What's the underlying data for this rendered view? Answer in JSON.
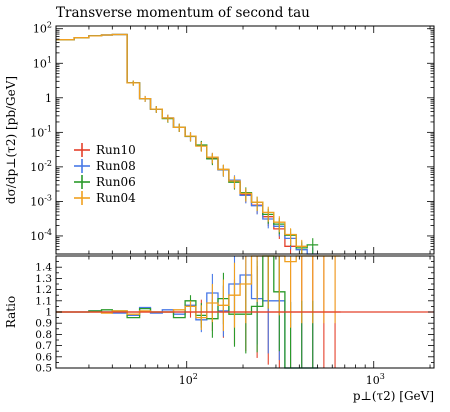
{
  "chart_data": {
    "type": "line",
    "title": "Transverse momentum of second tau",
    "xlabel": "p⊥(τ2) [GeV]",
    "ylabel": "dσ/dp⊥(τ2) [pb/GeV]",
    "ratio_ylabel": "Ratio",
    "x_scale": "log",
    "y_scale": "log",
    "xlim": [
      20,
      2100
    ],
    "ylim": [
      3e-05,
      120
    ],
    "ratio_ylim": [
      0.5,
      1.5
    ],
    "x_tick_labels": [
      "10^2",
      "10^3"
    ],
    "y_tick_labels": [
      "10^-4",
      "10^-3",
      "10^-2",
      "10^-1",
      "1",
      "10^1",
      "10^2"
    ],
    "ratio_tick_labels": [
      "0.5",
      "0.6",
      "0.7",
      "0.8",
      "0.9",
      "1",
      "1.1",
      "1.2",
      "1.3",
      "1.4"
    ],
    "legend_position": "middle-left",
    "bin_edges": [
      20,
      25,
      30,
      35,
      40,
      48,
      56,
      64,
      74,
      85,
      98,
      112,
      128,
      147,
      168,
      193,
      222,
      255,
      292,
      335,
      385,
      441,
      505,
      580,
      665,
      2100
    ],
    "series": [
      {
        "name": "Run10",
        "color": "#e4402b",
        "values": [
          48,
          55,
          62,
          66,
          68,
          2.7,
          0.95,
          0.47,
          0.26,
          0.14,
          0.078,
          0.042,
          0.018,
          0.0082,
          0.0037,
          0.0016,
          0.00078,
          0.00036,
          0.00016,
          5e-05,
          null,
          null,
          null,
          null,
          null
        ],
        "ratio": [
          1.0,
          1.0,
          1.0,
          1.0,
          1.0,
          1.0,
          1.0,
          1.0,
          1.0,
          1.0,
          1.0,
          1.0,
          1.0,
          1.0,
          1.0,
          1.0,
          1.0,
          1.0,
          1.0,
          1.0,
          1.0,
          1.0,
          1.0,
          1.0,
          null
        ]
      },
      {
        "name": "Run08",
        "color": "#4878e6",
        "values": [
          48,
          55,
          62,
          66,
          68,
          2.7,
          0.95,
          0.47,
          0.26,
          0.14,
          0.076,
          0.041,
          0.019,
          0.0083,
          0.0041,
          0.0015,
          0.00075,
          0.00031,
          0.00019,
          8.5e-05,
          4e-05,
          3e-05,
          null,
          null,
          null
        ],
        "ratio": [
          1.0,
          1.0,
          1.01,
          1.0,
          0.99,
          0.97,
          1.04,
          0.99,
          1.02,
          0.98,
          1.06,
          0.93,
          1.17,
          1.01,
          1.25,
          1.33,
          1.12,
          1.1,
          1.1,
          0.5,
          0.5,
          0.5,
          null,
          null,
          null
        ]
      },
      {
        "name": "Run06",
        "color": "#2a9a2a",
        "values": [
          48,
          55,
          62,
          66,
          68,
          2.7,
          0.95,
          0.47,
          0.25,
          0.14,
          0.077,
          0.043,
          0.017,
          0.0084,
          0.0036,
          0.0018,
          0.00095,
          0.00042,
          0.00022,
          0.000105,
          4.5e-05,
          5.5e-05,
          null,
          null,
          null
        ],
        "ratio": [
          1.0,
          1.0,
          1.01,
          1.02,
          1.01,
          0.95,
          1.03,
          1.0,
          1.0,
          0.95,
          1.1,
          0.97,
          0.94,
          1.12,
          0.98,
          0.98,
          1.05,
          1.5,
          1.18,
          0.5,
          0.5,
          0.5,
          null,
          null,
          null
        ]
      },
      {
        "name": "Run04",
        "color": "#f0a020",
        "values": [
          48,
          55,
          62,
          66,
          68,
          2.7,
          0.95,
          0.47,
          0.26,
          0.14,
          0.078,
          0.04,
          0.019,
          0.0085,
          0.0039,
          0.0017,
          0.00095,
          0.00048,
          0.00025,
          0.00011,
          5e-05,
          null,
          null,
          null,
          null
        ],
        "ratio": [
          1.0,
          1.0,
          1.0,
          0.99,
          1.01,
          0.98,
          1.01,
          1.0,
          1.0,
          1.02,
          1.05,
          0.95,
          1.08,
          1.06,
          1.15,
          1.25,
          1.5,
          1.5,
          1.5,
          1.45,
          1.5,
          1.5,
          1.5,
          1.5,
          null
        ]
      }
    ]
  }
}
